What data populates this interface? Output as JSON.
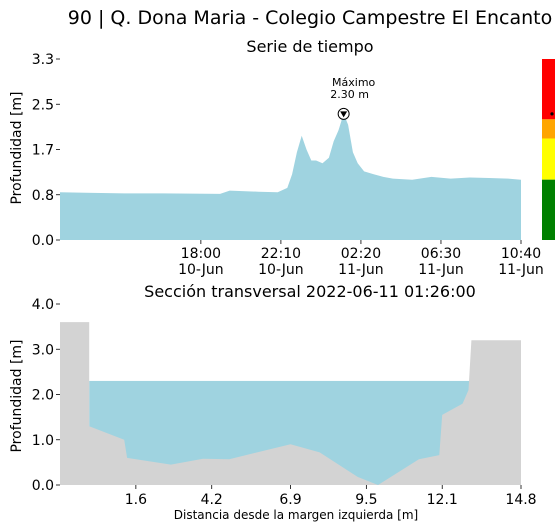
{
  "title": "90 | Q. Dona Maria - Colegio Campestre El Encanto",
  "colors": {
    "water": "#9fd3e0",
    "ground": "#d3d3d3",
    "alert_red": "#ff0000",
    "alert_orange": "#ffa500",
    "alert_yellow": "#ffff00",
    "alert_green": "#008000"
  },
  "chart_data": [
    {
      "type": "area",
      "title": "Serie de tiempo",
      "ylabel": "Profundidad [m]",
      "ylim": [
        0,
        3.3
      ],
      "yticks": [
        "0.0",
        "0.8",
        "1.7",
        "2.5",
        "3.3"
      ],
      "ytick_values": [
        0,
        0.825,
        1.65,
        2.475,
        3.3
      ],
      "xlim": [
        "2022-06-10 10:40",
        "2022-06-11 10:40"
      ],
      "xticks": [
        {
          "time": "2022-06-10 18:00",
          "line1": "18:00",
          "line2": "10-Jun"
        },
        {
          "time": "2022-06-10 22:10",
          "line1": "22:10",
          "line2": "10-Jun"
        },
        {
          "time": "2022-06-11 02:20",
          "line1": "02:20",
          "line2": "11-Jun"
        },
        {
          "time": "2022-06-11 06:30",
          "line1": "06:30",
          "line2": "11-Jun"
        },
        {
          "time": "2022-06-11 10:40",
          "line1": "10:40",
          "line2": "11-Jun"
        }
      ],
      "series": [
        {
          "x": [
            "2022-06-10 10:40",
            "2022-06-10 12:00",
            "2022-06-10 14:00",
            "2022-06-10 16:00",
            "2022-06-10 19:00",
            "2022-06-10 19:30",
            "2022-06-10 21:00",
            "2022-06-10 22:00",
            "2022-06-10 22:30",
            "2022-06-10 22:45",
            "2022-06-10 23:00",
            "2022-06-10 23:15",
            "2022-06-10 23:30",
            "2022-06-10 23:45",
            "2022-06-11 00:00",
            "2022-06-11 00:20",
            "2022-06-11 00:40",
            "2022-06-11 00:55",
            "2022-06-11 01:10",
            "2022-06-11 01:26",
            "2022-06-11 01:40",
            "2022-06-11 01:55",
            "2022-06-11 02:10",
            "2022-06-11 02:30",
            "2022-06-11 03:00",
            "2022-06-11 03:30",
            "2022-06-11 04:00",
            "2022-06-11 05:00",
            "2022-06-11 06:00",
            "2022-06-11 07:00",
            "2022-06-11 08:00",
            "2022-06-11 09:00",
            "2022-06-11 10:00",
            "2022-06-11 10:40"
          ],
          "values": [
            0.87,
            0.86,
            0.85,
            0.85,
            0.84,
            0.9,
            0.88,
            0.87,
            0.95,
            1.2,
            1.6,
            1.9,
            1.65,
            1.45,
            1.45,
            1.4,
            1.5,
            1.8,
            2.0,
            2.3,
            2.1,
            1.6,
            1.4,
            1.25,
            1.2,
            1.15,
            1.12,
            1.1,
            1.15,
            1.12,
            1.14,
            1.13,
            1.12,
            1.1
          ]
        }
      ],
      "annotation": {
        "label": "Máximo",
        "value_text": "2.30 m",
        "time": "2022-06-11 01:26",
        "value": 2.3
      },
      "alert_levels": [
        {
          "color": "#ff0000",
          "from": 2.2,
          "to": 3.3
        },
        {
          "color": "#ffa500",
          "from": 1.85,
          "to": 2.2
        },
        {
          "color": "#ffff00",
          "from": 1.1,
          "to": 1.85
        },
        {
          "color": "#008000",
          "from": 0.0,
          "to": 1.1
        }
      ],
      "alert_marker_value": 2.3
    },
    {
      "type": "area",
      "title": "Sección transversal 2022-06-11 01:26:00",
      "ylabel": "Profundidad [m]",
      "xlabel": "Distancia desde la margen izquierda [m]",
      "ylim": [
        0,
        4.0
      ],
      "yticks": [
        "0.0",
        "1.0",
        "2.0",
        "3.0",
        "4.0"
      ],
      "ytick_values": [
        0,
        1,
        2,
        3,
        4
      ],
      "xlim": [
        -1.0,
        14.8
      ],
      "xticks": [
        "1.6",
        "4.2",
        "6.9",
        "9.5",
        "12.1",
        "14.8"
      ],
      "xtick_values": [
        1.6,
        4.2,
        6.9,
        9.5,
        12.1,
        14.8
      ],
      "ground_profile": {
        "x": [
          -1.0,
          0.0,
          0.0,
          0.0,
          1.2,
          1.3,
          2.8,
          3.9,
          4.8,
          6.9,
          7.9,
          9.2,
          9.9,
          11.3,
          12.0,
          12.1,
          12.8,
          13.0,
          13.1,
          14.8,
          14.8
        ],
        "y": [
          3.6,
          3.6,
          3.6,
          1.3,
          1.0,
          0.6,
          0.45,
          0.58,
          0.57,
          0.9,
          0.72,
          0.18,
          0.0,
          0.57,
          0.66,
          1.55,
          1.8,
          2.1,
          3.2,
          3.2,
          3.2
        ]
      },
      "water_level": 2.3
    }
  ]
}
